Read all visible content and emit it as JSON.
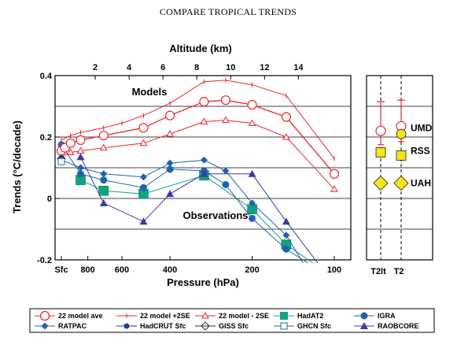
{
  "chart_data": {
    "type": "line",
    "title": "COMPARE TROPICAL TRENDS",
    "ylabel": "Trends (°C/decade)",
    "xlabel": "Pressure (hPa)",
    "x2label": "Altitude (km)",
    "ylim": [
      -0.2,
      0.4
    ],
    "y_ticks": [
      "0.4",
      "0.2",
      "0",
      "-0.2"
    ],
    "y_tick_values": [
      0.4,
      0.2,
      0,
      -0.2
    ],
    "x_ticks": [
      "Sfc",
      "800",
      "600",
      "400",
      "200",
      "100"
    ],
    "x_tick_values": [
      1000,
      800,
      600,
      400,
      200,
      100
    ],
    "x2_ticks": [
      "2",
      "4",
      "6",
      "8",
      "10",
      "12",
      "14"
    ],
    "x2_tick_values": [
      2,
      4,
      6,
      8,
      10,
      12,
      14
    ],
    "grid": true,
    "annotations": {
      "models": "Models",
      "observations": "Observations"
    },
    "series": [
      {
        "name": "22 model ave",
        "color": "#e8262b",
        "marker": "circle-open",
        "points": [
          [
            1000,
            0.155
          ],
          [
            970,
            0.165
          ],
          [
            925,
            0.18
          ],
          [
            850,
            0.19
          ],
          [
            700,
            0.205
          ],
          [
            500,
            0.23
          ],
          [
            400,
            0.27
          ],
          [
            300,
            0.315
          ],
          [
            250,
            0.32
          ],
          [
            200,
            0.305
          ],
          [
            150,
            0.265
          ],
          [
            100,
            0.08
          ]
        ]
      },
      {
        "name": "22 model +2SE",
        "color": "#e8262b",
        "marker": "tick",
        "points": [
          [
            1000,
            0.19
          ],
          [
            925,
            0.205
          ],
          [
            850,
            0.215
          ],
          [
            700,
            0.23
          ],
          [
            600,
            0.245
          ],
          [
            500,
            0.27
          ],
          [
            400,
            0.31
          ],
          [
            300,
            0.38
          ],
          [
            250,
            0.385
          ],
          [
            200,
            0.37
          ],
          [
            150,
            0.335
          ],
          [
            100,
            0.13
          ]
        ]
      },
      {
        "name": "22 model - 2SE",
        "color": "#e8262b",
        "marker": "triangle-open",
        "points": [
          [
            1000,
            0.135
          ],
          [
            925,
            0.15
          ],
          [
            850,
            0.155
          ],
          [
            700,
            0.165
          ],
          [
            500,
            0.18
          ],
          [
            400,
            0.21
          ],
          [
            300,
            0.25
          ],
          [
            250,
            0.255
          ],
          [
            200,
            0.245
          ],
          [
            150,
            0.2
          ],
          [
            100,
            0.03
          ]
        ]
      },
      {
        "name": "HadAT2",
        "color": "#14a37f",
        "marker": "square-filled",
        "points": [
          [
            850,
            0.06
          ],
          [
            700,
            0.025
          ],
          [
            500,
            0.015
          ],
          [
            300,
            0.075
          ],
          [
            200,
            -0.035
          ],
          [
            150,
            -0.15
          ],
          [
            120,
            -0.21
          ]
        ]
      },
      {
        "name": "IGRA",
        "color": "#1f63b0",
        "marker": "circle-filled",
        "points": [
          [
            1000,
            0.175
          ],
          [
            850,
            0.08
          ],
          [
            700,
            0.06
          ],
          [
            500,
            0.035
          ],
          [
            400,
            0.095
          ],
          [
            300,
            0.09
          ],
          [
            250,
            0.045
          ],
          [
            200,
            -0.065
          ],
          [
            150,
            -0.165
          ],
          [
            125,
            -0.21
          ]
        ]
      },
      {
        "name": "RATPAC",
        "color": "#1f63b0",
        "marker": "diamond-filled",
        "points": [
          [
            1000,
            0.125
          ],
          [
            850,
            0.1
          ],
          [
            700,
            0.08
          ],
          [
            500,
            0.07
          ],
          [
            400,
            0.115
          ],
          [
            300,
            0.125
          ],
          [
            250,
            0.09
          ],
          [
            200,
            -0.015
          ],
          [
            150,
            -0.12
          ],
          [
            130,
            -0.21
          ]
        ]
      },
      {
        "name": "HadCRUT Sfc",
        "color": "#1a3f8f",
        "marker": "dot-filled",
        "points": [
          [
            1000,
            0.13
          ]
        ]
      },
      {
        "name": "GISS Sfc",
        "color": "#333333",
        "marker": "diamond-open",
        "points": [
          [
            1000,
            0.13
          ]
        ]
      },
      {
        "name": "GHCN Sfc",
        "color": "#1f63b0",
        "marker": "square-open",
        "points": [
          [
            1000,
            0.12
          ]
        ]
      },
      {
        "name": "RAOBCORE",
        "color": "#3b3ba3",
        "marker": "triangle-filled",
        "points": [
          [
            850,
            0.135
          ],
          [
            700,
            -0.015
          ],
          [
            500,
            -0.075
          ],
          [
            400,
            0.015
          ],
          [
            300,
            0.08
          ],
          [
            200,
            0.08
          ],
          [
            150,
            -0.075
          ],
          [
            115,
            -0.21
          ]
        ]
      }
    ],
    "satellite_panel": {
      "x_labels": [
        "T2lt",
        "T2"
      ],
      "products": [
        {
          "name": "UMD",
          "color": "#f5e61a",
          "marker": "circle-filled",
          "t2lt": null,
          "t2": 0.21
        },
        {
          "name": "RSS",
          "color": "#f5e61a",
          "marker": "square-filled",
          "t2lt": 0.15,
          "t2": 0.14
        },
        {
          "name": "UAH",
          "color": "#f5e61a",
          "marker": "diamond-filled",
          "t2lt": 0.05,
          "t2": 0.05
        }
      ],
      "models": [
        {
          "name": "22 model ave",
          "t2lt": 0.22,
          "t2": 0.235
        },
        {
          "name": "22 model +2SE",
          "t2lt": 0.315,
          "t2": 0.32
        },
        {
          "name": "22 model - 2SE",
          "t2lt": 0.175,
          "t2": 0.185
        }
      ]
    }
  }
}
